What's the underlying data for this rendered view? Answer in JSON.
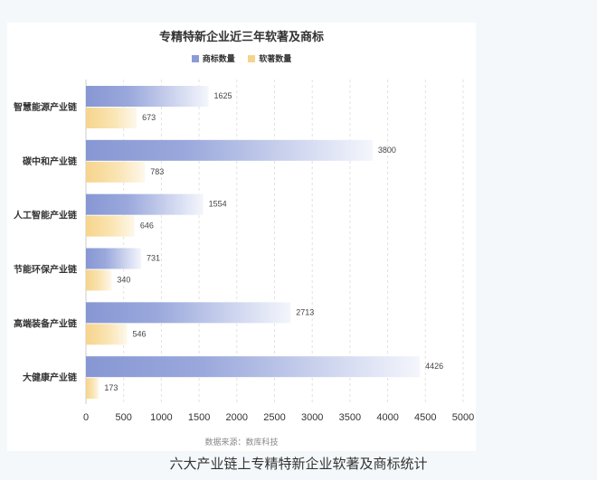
{
  "chart_data": {
    "type": "bar",
    "orientation": "horizontal",
    "title": "专精特新企业近三年软著及商标",
    "categories": [
      "智慧能源产业链",
      "碳中和产业链",
      "人工智能产业链",
      "节能环保产业链",
      "高端装备产业链",
      "大健康产业链"
    ],
    "series": [
      {
        "name": "商标数量",
        "values": [
          1625,
          3800,
          1554,
          731,
          2713,
          4426
        ],
        "color": "#8a9bd6"
      },
      {
        "name": "软著数量",
        "values": [
          673,
          783,
          646,
          340,
          546,
          173
        ],
        "color": "#f6d48c"
      }
    ],
    "xlim": [
      0,
      5000
    ],
    "xticks": [
      "0",
      "500",
      "1000",
      "1500",
      "2000",
      "2500",
      "3000",
      "3500",
      "4000",
      "4500",
      "5000"
    ],
    "grid": true,
    "legend_position": "top-center"
  },
  "source": "数据来源：数库科技",
  "caption": "六大产业链上专精特新企业软著及商标统计"
}
